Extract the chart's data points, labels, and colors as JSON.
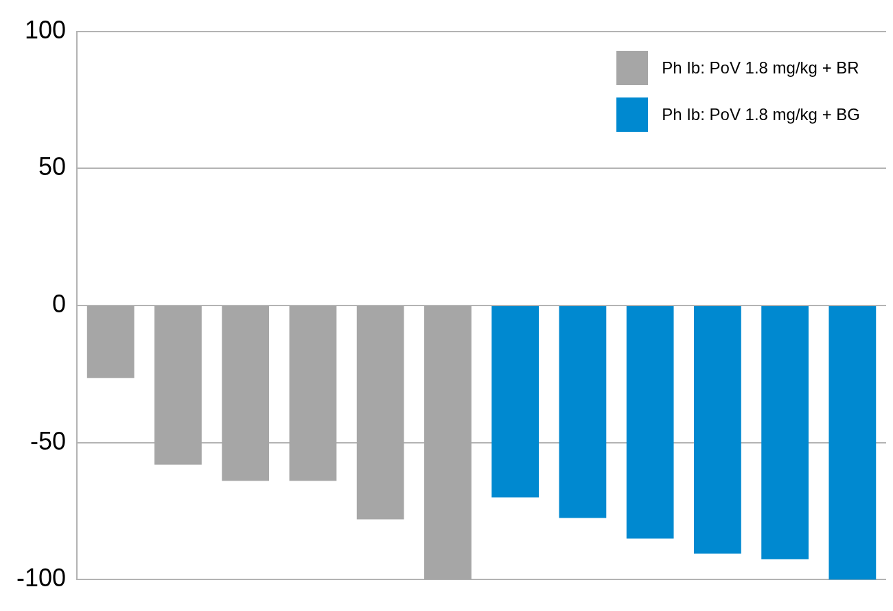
{
  "chart_data": {
    "type": "bar",
    "categories": [
      null,
      null,
      null,
      null,
      null,
      null,
      null,
      null,
      null,
      null,
      null,
      null
    ],
    "series": [
      {
        "name": "Ph Ib: PoV 1.8 mg/kg + BR",
        "color": "#a6a6a6",
        "values": [
          -26.5,
          -58,
          -64,
          -64,
          -78,
          -100,
          null,
          null,
          null,
          null,
          null,
          null
        ]
      },
      {
        "name": "Ph Ib: PoV 1.8 mg/kg + BG",
        "color": "#0089d0",
        "values": [
          null,
          null,
          null,
          null,
          null,
          null,
          -70,
          -77.5,
          -85,
          -90.5,
          -92.5,
          -100
        ]
      }
    ],
    "ylim": [
      -100,
      100
    ],
    "yticks": [
      -100,
      -50,
      0,
      50,
      100
    ],
    "grid": "y",
    "legend": "top right",
    "tick_labels": "y"
  }
}
